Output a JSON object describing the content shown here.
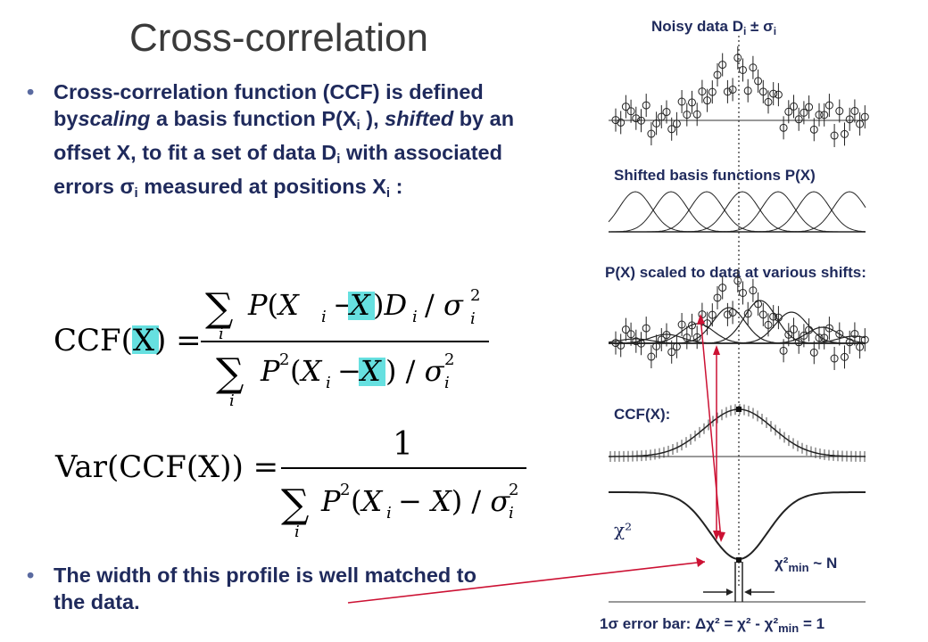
{
  "slide": {
    "title": "Cross-correlation",
    "bullet1": {
      "t1": "Cross-correlation function (CCF) is defined by",
      "t2": "scaling",
      "t3": " a basis function P(X",
      "t4": "i",
      "t5": " ), ",
      "t6": "shifted",
      "t7": " by an offset X, to fit a set of data D",
      "t8": "i",
      "t9": " with associated errors ",
      "t10": "σ",
      "t11": "i",
      "t12": " measured at positions X",
      "t13": "i",
      "t14": " :"
    },
    "bullet2": "The width of this profile is well matched to the data.",
    "equations": {
      "ccf_lhs": "CCF(X) =",
      "var_lhs": "Var(CCF(X)) =",
      "one": "1"
    },
    "right": {
      "noisy_label": "Noisy data D",
      "noisy_sub": "i",
      "noisy_pm": " ± ",
      "noisy_sigma": "σ",
      "noisy_sigma_sub": "i",
      "shifted_label": "Shifted basis functions P(X)",
      "scaled_label": "P(X) scaled to data at various shifts:",
      "ccf_label": "CCF(X):",
      "chi2": "χ²",
      "chi2min_a": "χ²",
      "chi2min_b": "min",
      "chi2min_c": " ~ N",
      "errbar": "1σ error bar: Δχ² = χ² - χ²",
      "errbar_min": "min",
      "errbar_end": " = 1"
    },
    "colors": {
      "text": "#1f2a5c",
      "highlight": "#66e0e0",
      "arrow": "#cc1133"
    }
  }
}
